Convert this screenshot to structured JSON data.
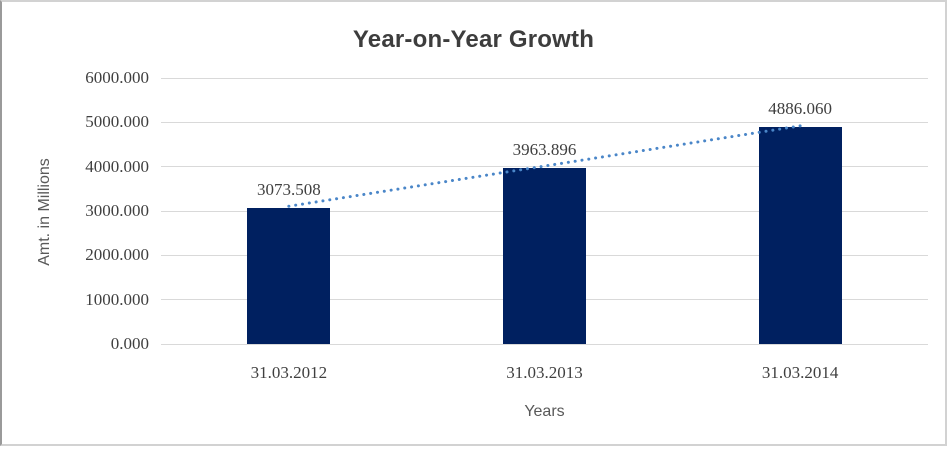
{
  "chart_data": {
    "type": "bar",
    "title": "Year-on-Year Growth",
    "xlabel": "Years",
    "ylabel": "Amt. in Millions",
    "categories": [
      "31.03.2012",
      "31.03.2013",
      "31.03.2014"
    ],
    "values": [
      3073.508,
      3963.896,
      4886.06
    ],
    "data_labels": [
      "3073.508",
      "3963.896",
      "4886.060"
    ],
    "y_ticks": [
      {
        "label": "6000.000",
        "value": 6000
      },
      {
        "label": "5000.000",
        "value": 5000
      },
      {
        "label": "4000.000",
        "value": 4000
      },
      {
        "label": "3000.000",
        "value": 3000
      },
      {
        "label": "2000.000",
        "value": 2000
      },
      {
        "label": "1000.000",
        "value": 1000
      },
      {
        "label": "0.000",
        "value": 0
      }
    ],
    "ylim": [
      0,
      6000
    ],
    "grid": true,
    "legend": "none",
    "trendline": {
      "type": "linear",
      "style": "dotted"
    },
    "colors": {
      "bar": "#002060",
      "trendline": "#4a86c8",
      "gridline": "#d9d9d9",
      "label_text": "#3f3f3f",
      "axis_title_text": "#595959",
      "title_text": "#3d3d3d"
    }
  }
}
